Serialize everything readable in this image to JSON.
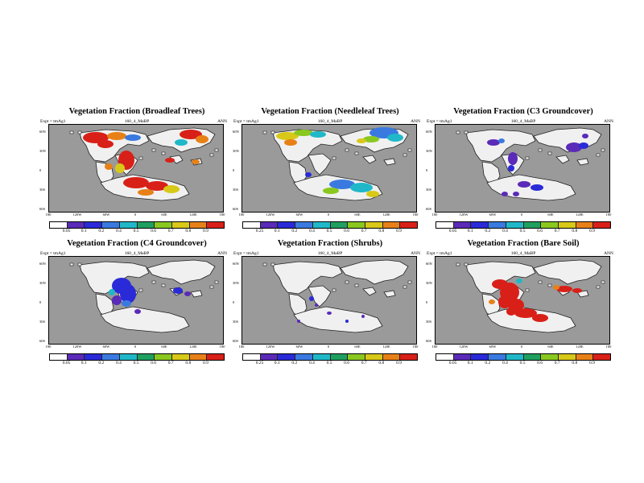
{
  "colors": {
    "ocean": "#9a9a9a",
    "land": "#f0f0f0",
    "scale": [
      "#ffffff",
      "#5a2ab8",
      "#2a2ad8",
      "#3a7ae0",
      "#20b8c8",
      "#20a060",
      "#8ac820",
      "#d8c818",
      "#e88018",
      "#d82018"
    ]
  },
  "colorbar_labels_a": [
    "0.05",
    "0.1",
    "0.2",
    "0.4",
    "0.5",
    "0.6",
    "0.7",
    "0.8",
    "0.9"
  ],
  "colorbar_labels_b": [
    "0.25",
    "0.1",
    "0.2",
    "0.4",
    "0.5",
    "0.6",
    "0.7",
    "0.8",
    "0.9"
  ],
  "lon_labels": [
    "180",
    "120W",
    "60W",
    "0",
    "60E",
    "120E",
    "180"
  ],
  "lat_labels": [
    "60N",
    "30N",
    "0",
    "30S",
    "60S"
  ],
  "experiment": "Expt = tmAg1",
  "run": "160_4_MaBP",
  "season": "ANN",
  "panels": [
    {
      "title": "Vegetation Fraction (Broadleaf Trees)"
    },
    {
      "title": "Vegetation Fraction (Needleleaf Trees)"
    },
    {
      "title": "Vegetation Fraction (C3 Groundcover)"
    },
    {
      "title": "Vegetation Fraction (C4 Groundcover)"
    },
    {
      "title": "Vegetation Fraction (Shrubs)"
    },
    {
      "title": "Vegetation Fraction (Bare Soil)"
    }
  ]
}
